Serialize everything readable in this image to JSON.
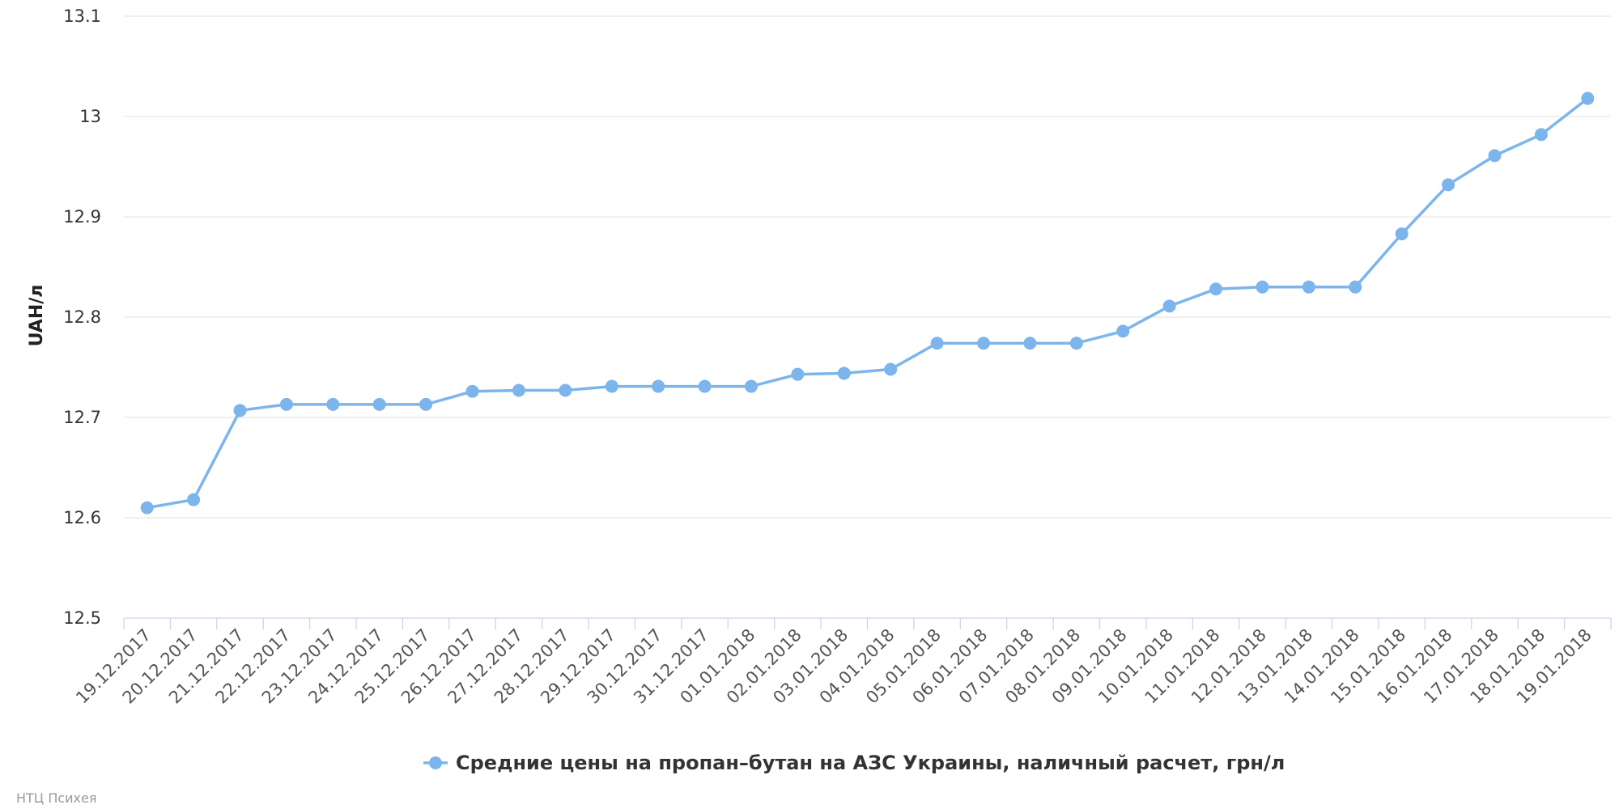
{
  "chart_data": {
    "type": "line",
    "title": "",
    "xlabel": "",
    "ylabel": "UAH/л",
    "ylim": [
      12.5,
      13.1
    ],
    "y_ticks": [
      "12.5",
      "12.6",
      "12.7",
      "12.8",
      "12.9",
      "13",
      "13.1"
    ],
    "grid": true,
    "legend_position": "bottom-center",
    "credits": "НТЦ Психея",
    "colors": {
      "series": "#7cb5ec",
      "grid": "#e6e6e6",
      "axis": "#ccd6eb"
    },
    "categories": [
      "19.12.2017",
      "20.12.2017",
      "21.12.2017",
      "22.12.2017",
      "23.12.2017",
      "24.12.2017",
      "25.12.2017",
      "26.12.2017",
      "27.12.2017",
      "28.12.2017",
      "29.12.2017",
      "30.12.2017",
      "31.12.2017",
      "01.01.2018",
      "02.01.2018",
      "03.01.2018",
      "04.01.2018",
      "05.01.2018",
      "06.01.2018",
      "07.01.2018",
      "08.01.2018",
      "09.01.2018",
      "10.01.2018",
      "11.01.2018",
      "12.01.2018",
      "13.01.2018",
      "14.01.2018",
      "15.01.2018",
      "16.01.2018",
      "17.01.2018",
      "18.01.2018",
      "19.01.2018"
    ],
    "series": [
      {
        "name": "Средние цены на пропан–бутан на АЗС Украины, наличный расчет, грн/л",
        "values": [
          12.61,
          12.618,
          12.707,
          12.713,
          12.713,
          12.713,
          12.713,
          12.726,
          12.727,
          12.727,
          12.731,
          12.731,
          12.731,
          12.731,
          12.743,
          12.744,
          12.748,
          12.774,
          12.774,
          12.774,
          12.774,
          12.786,
          12.811,
          12.828,
          12.83,
          12.83,
          12.83,
          12.883,
          12.932,
          12.961,
          12.982,
          13.018
        ]
      }
    ]
  }
}
